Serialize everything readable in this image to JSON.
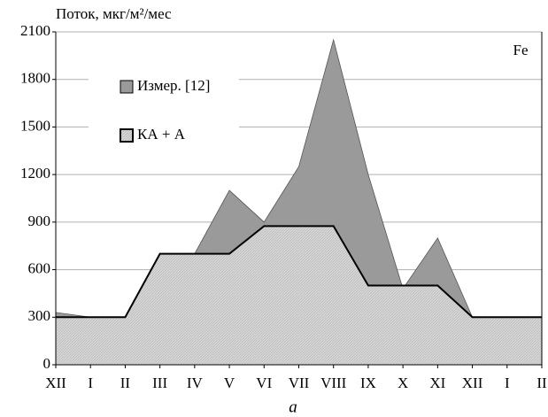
{
  "chart_data": {
    "type": "area",
    "y_label": "Поток, мкг/м²/мес",
    "annotation": "Fe",
    "caption": "a",
    "categories": [
      "XII",
      "I",
      "II",
      "III",
      "IV",
      "V",
      "VI",
      "VII",
      "VIII",
      "IX",
      "X",
      "XI",
      "XII",
      "I",
      "II"
    ],
    "series": [
      {
        "name": "Измер. [12]",
        "color": "#9a9a9a",
        "values": [
          330,
          300,
          300,
          700,
          700,
          1100,
          900,
          1250,
          2050,
          1200,
          480,
          800,
          300,
          300,
          300
        ]
      },
      {
        "name": "КА + А",
        "color": "#d2d2d2",
        "values": [
          300,
          300,
          300,
          700,
          700,
          700,
          875,
          875,
          875,
          500,
          500,
          500,
          300,
          300,
          300
        ]
      }
    ],
    "ylim": [
      0,
      2100
    ],
    "yticks": [
      0,
      300,
      600,
      900,
      1200,
      1500,
      1800,
      2100
    ],
    "grid": true
  }
}
